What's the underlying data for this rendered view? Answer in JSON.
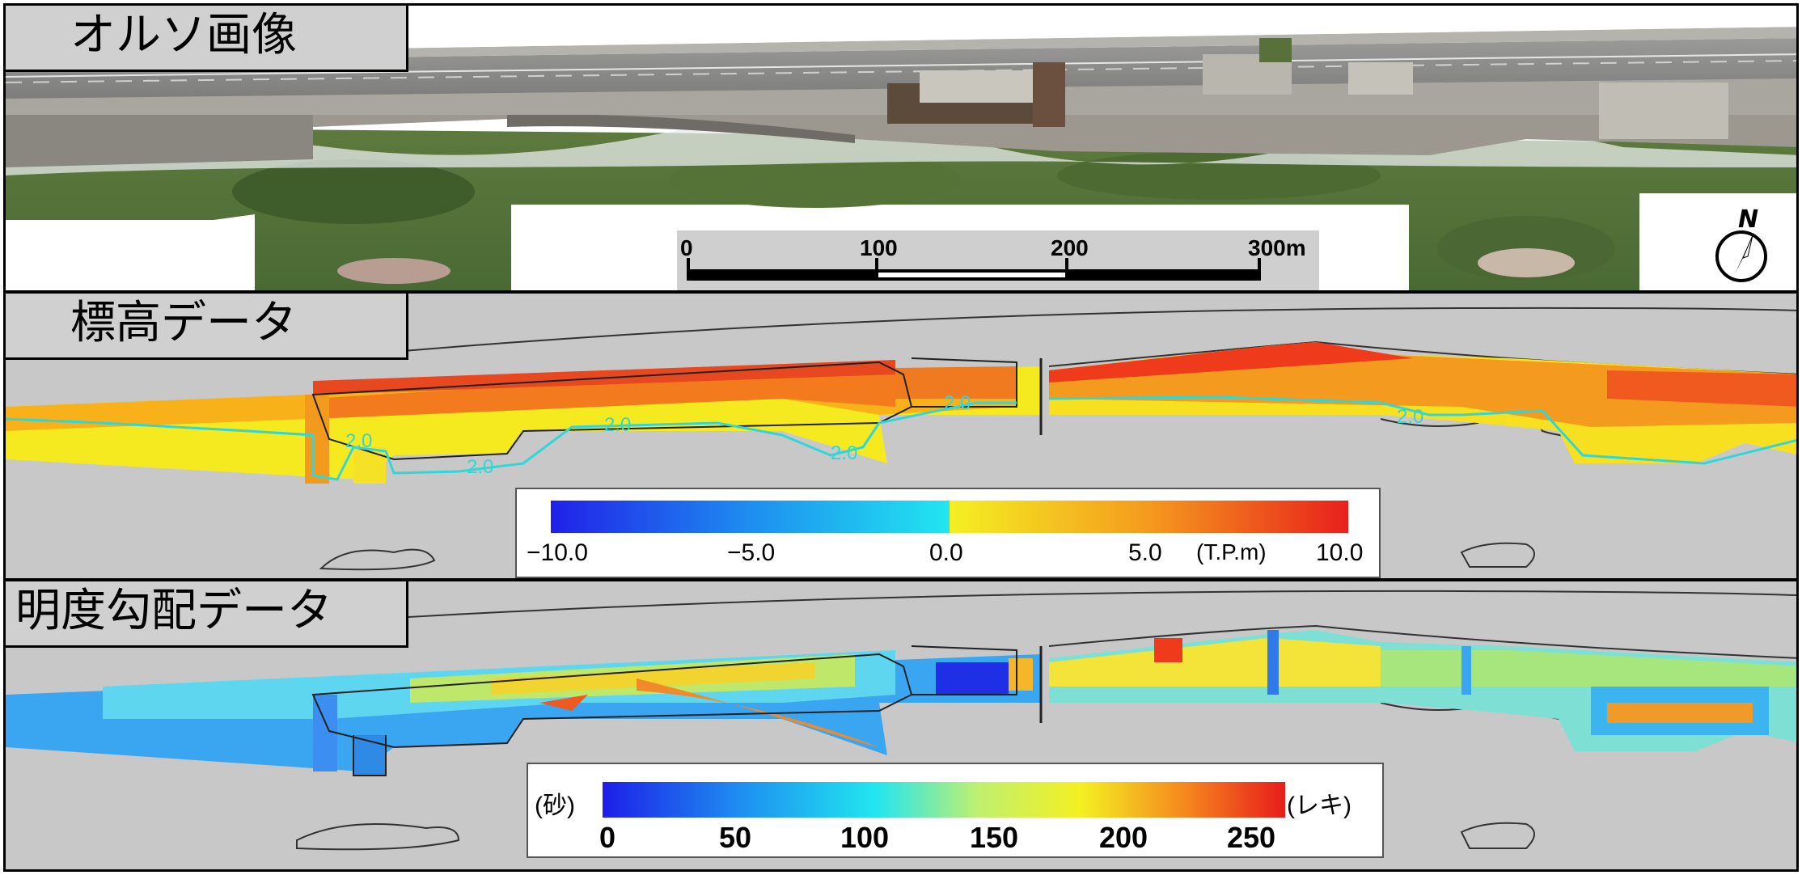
{
  "panels": {
    "ortho": {
      "title": "オルソ画像"
    },
    "elevation": {
      "title": "標高データ"
    },
    "gradient": {
      "title": "明度勾配データ"
    }
  },
  "scale_bar": {
    "ticks": [
      "0",
      "100",
      "200",
      "300m"
    ]
  },
  "north_arrow": {
    "label": "N",
    "icon": "north-arrow-icon"
  },
  "elevation_legend": {
    "ticks": [
      "−10.0",
      "−5.0",
      "0.0",
      "5.0",
      "10.0"
    ],
    "unit": "(T.P.m)",
    "contour_label": "2.0",
    "range": [
      -10,
      10
    ]
  },
  "gradient_legend": {
    "ticks": [
      "0",
      "50",
      "100",
      "150",
      "200",
      "250"
    ],
    "left_label": "(砂)",
    "right_label": "(レキ)",
    "range": [
      0,
      255
    ]
  },
  "colors": {
    "panel_gray": "#c8c8c8",
    "title_box": "#d0d0d0",
    "contour": "#33d6d6"
  }
}
